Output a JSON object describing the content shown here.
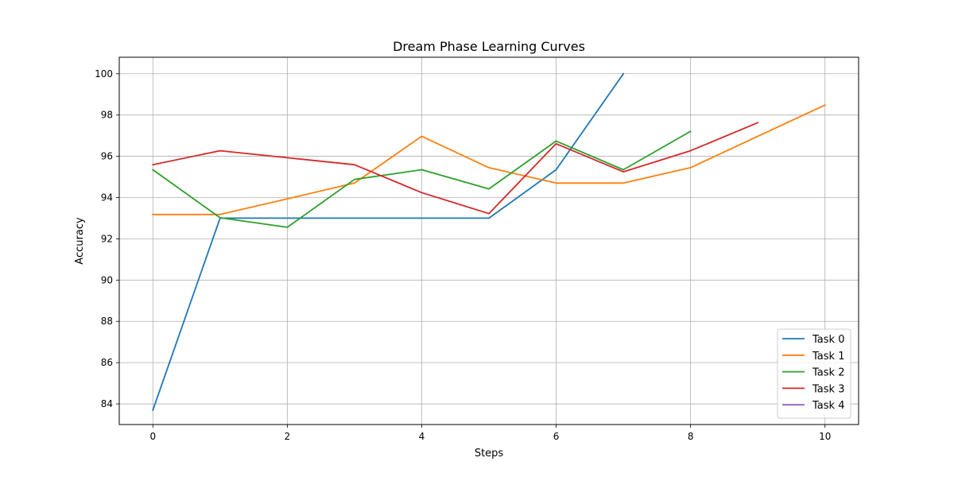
{
  "chart_data": {
    "type": "line",
    "title": "Dream Phase Learning Curves",
    "xlabel": "Steps",
    "ylabel": "Accuracy",
    "xlim": [
      -0.5,
      10.5
    ],
    "ylim": [
      83,
      100.8
    ],
    "xticks": [
      0,
      2,
      4,
      6,
      8,
      10
    ],
    "yticks": [
      84,
      86,
      88,
      90,
      92,
      94,
      96,
      98,
      100
    ],
    "grid": true,
    "legend_position": "lower-right",
    "series": [
      {
        "name": "Task 0",
        "color": "#1f77b4",
        "x": [
          0,
          1,
          2,
          3,
          4,
          5,
          6,
          7
        ],
        "y": [
          83.7,
          93.0,
          93.0,
          93.0,
          93.0,
          93.0,
          95.35,
          100.0
        ]
      },
      {
        "name": "Task 1",
        "color": "#ff7f0e",
        "x": [
          0,
          1,
          2,
          3,
          4,
          5,
          6,
          7,
          8,
          9,
          10
        ],
        "y": [
          93.18,
          93.18,
          93.94,
          94.7,
          96.97,
          95.45,
          94.7,
          94.7,
          95.45,
          96.97,
          98.48
        ]
      },
      {
        "name": "Task 2",
        "color": "#2ca02c",
        "x": [
          0,
          1,
          2,
          3,
          4,
          5,
          6,
          7,
          8
        ],
        "y": [
          95.35,
          93.02,
          92.56,
          94.88,
          95.35,
          94.42,
          96.74,
          95.35,
          97.21
        ]
      },
      {
        "name": "Task 3",
        "color": "#d62728",
        "x": [
          0,
          1,
          2,
          3,
          4,
          5,
          6,
          7,
          8,
          9
        ],
        "y": [
          95.59,
          96.27,
          95.93,
          95.59,
          94.24,
          93.22,
          96.61,
          95.25,
          96.27,
          97.63
        ]
      },
      {
        "name": "Task 4",
        "color": "#9467bd",
        "x": [],
        "y": []
      }
    ]
  }
}
